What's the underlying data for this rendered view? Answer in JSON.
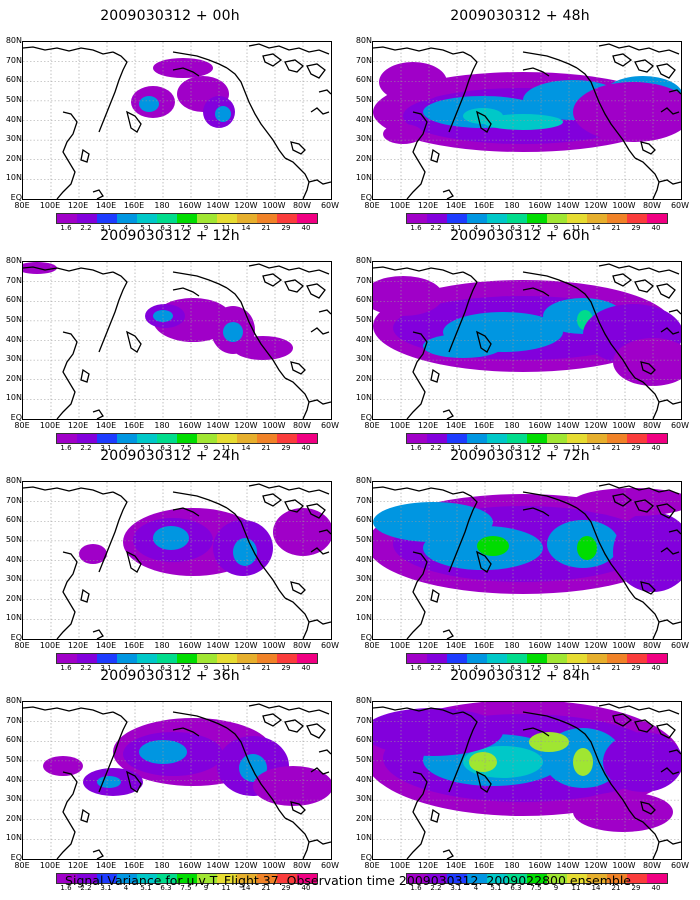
{
  "caption": "Signal Variance for u,v,T. Flight 37. Observation time 2009030312. 2009022800 ensemble.",
  "lat_labels": [
    "80N",
    "70N",
    "60N",
    "50N",
    "40N",
    "30N",
    "20N",
    "10N",
    "EQ"
  ],
  "lon_labels": [
    "80E",
    "100E",
    "120E",
    "140E",
    "160E",
    "180",
    "160W",
    "140W",
    "120W",
    "100W",
    "80W",
    "60W"
  ],
  "colorbar": {
    "labels": [
      "1.6",
      "2.2",
      "3.1",
      "4",
      "5.1",
      "6.3",
      "7.5",
      "9",
      "11",
      "14",
      "21",
      "29",
      "40"
    ],
    "colors": [
      "#a000c8",
      "#8200dc",
      "#1e3cff",
      "#0096e1",
      "#00c8c8",
      "#00dc8c",
      "#00dc00",
      "#a0e632",
      "#e6dc32",
      "#e6af2d",
      "#f08228",
      "#fa3c3c",
      "#f00082"
    ]
  },
  "panels": [
    {
      "title": "2009030312 + 00h",
      "lead_hours": 0
    },
    {
      "title": "2009030312 + 48h",
      "lead_hours": 48
    },
    {
      "title": "2009030312 + 12h",
      "lead_hours": 12
    },
    {
      "title": "2009030312 + 60h",
      "lead_hours": 60
    },
    {
      "title": "2009030312 + 24h",
      "lead_hours": 24
    },
    {
      "title": "2009030312 + 72h",
      "lead_hours": 72
    },
    {
      "title": "2009030312 + 36h",
      "lead_hours": 36
    },
    {
      "title": "2009030312 + 84h",
      "lead_hours": 84
    }
  ]
}
